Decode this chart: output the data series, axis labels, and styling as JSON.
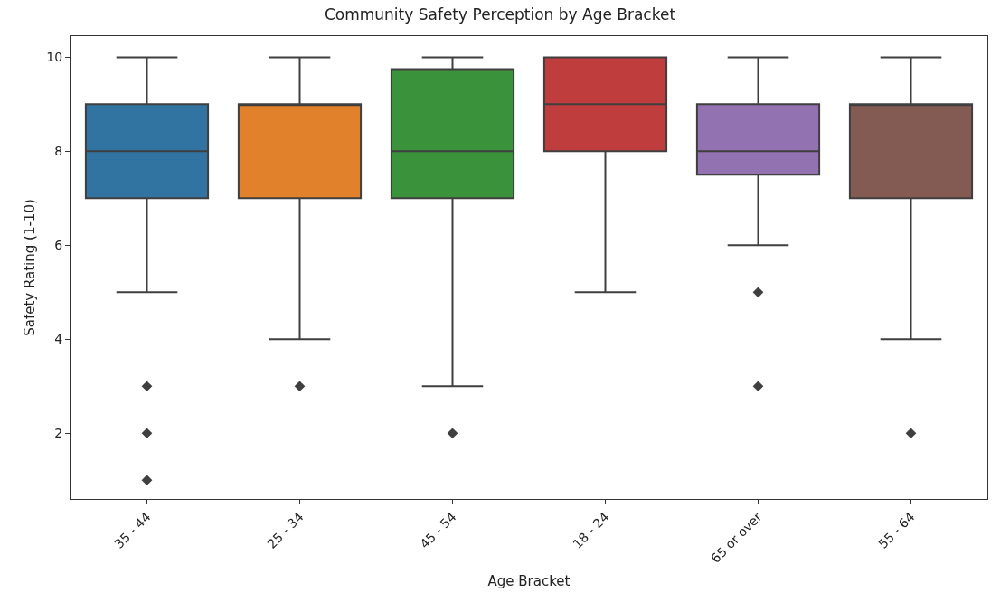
{
  "chart_data": {
    "type": "box",
    "title": "Community Safety Perception by Age Bracket",
    "xlabel": "Age Bracket",
    "ylabel": "Safety Rating (1-10)",
    "categories": [
      "35 - 44",
      "25 - 34",
      "45 - 54",
      "18 - 24",
      "65 or over",
      "55 - 64"
    ],
    "colors": [
      "#3274a1",
      "#e1812c",
      "#3a923a",
      "#c03d3e",
      "#9372b2",
      "#845b53"
    ],
    "boxes": [
      {
        "low": 5,
        "q1": 7,
        "median": 8,
        "q3": 9,
        "high": 10,
        "outliers": [
          3,
          2,
          1
        ]
      },
      {
        "low": 4,
        "q1": 7,
        "median": 9,
        "q3": 9,
        "high": 10,
        "outliers": [
          3
        ]
      },
      {
        "low": 3,
        "q1": 7,
        "median": 8,
        "q3": 9.75,
        "high": 10,
        "outliers": [
          2
        ]
      },
      {
        "low": 5,
        "q1": 8,
        "median": 9,
        "q3": 10,
        "high": 10
      },
      {
        "low": 6,
        "q1": 7.5,
        "median": 8,
        "q3": 9,
        "high": 10,
        "outliers": [
          5,
          3
        ]
      },
      {
        "low": 4,
        "q1": 7,
        "median": 9,
        "q3": 9,
        "high": 10,
        "outliers": [
          2
        ]
      }
    ],
    "ylim": [
      0.6,
      10.45
    ],
    "yticks": [
      2,
      4,
      6,
      8,
      10
    ],
    "grid": false,
    "marker": "diamond"
  }
}
